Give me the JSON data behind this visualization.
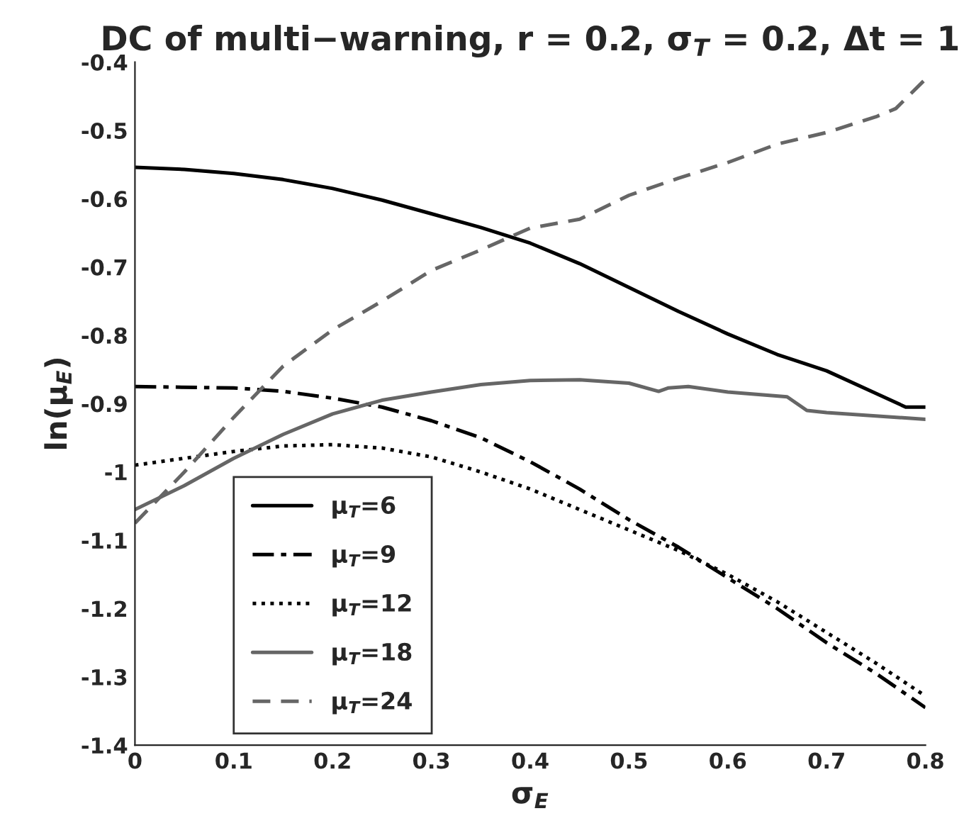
{
  "chart_data": {
    "type": "line",
    "title": "DC of multi−warning, r = 0.2, σ$_{T}$ = 0.2, Δt = 1",
    "xlabel": "σ$_{E}$",
    "ylabel": "ln(μ$_{E}$)",
    "xlim": [
      0,
      0.8
    ],
    "ylim": [
      -1.4,
      -0.4
    ],
    "xticks": [
      0,
      0.1,
      0.2,
      0.3,
      0.4,
      0.5,
      0.6,
      0.7,
      0.8
    ],
    "yticks": [
      -1.4,
      -1.3,
      -1.2,
      -1.1,
      -1,
      -0.9,
      -0.8,
      -0.7,
      -0.6,
      -0.5,
      -0.4
    ],
    "grid": false,
    "legend": "bottom left",
    "marker": "none",
    "series": [
      {
        "name": "μ$_{T}$=6",
        "color": "#000000",
        "line_style": "solid",
        "x": [
          0,
          0.05,
          0.1,
          0.15,
          0.2,
          0.25,
          0.3,
          0.35,
          0.4,
          0.45,
          0.5,
          0.55,
          0.6,
          0.65,
          0.7,
          0.75,
          0.78,
          0.8
        ],
        "values": [
          -0.554,
          -0.557,
          -0.563,
          -0.572,
          -0.585,
          -0.602,
          -0.622,
          -0.642,
          -0.665,
          -0.695,
          -0.73,
          -0.765,
          -0.798,
          -0.828,
          -0.852,
          -0.885,
          -0.905,
          -0.905
        ]
      },
      {
        "name": "μ$_{T}$=9",
        "color": "#000000",
        "line_style": "dashdot",
        "x": [
          0,
          0.1,
          0.15,
          0.2,
          0.25,
          0.3,
          0.35,
          0.4,
          0.45,
          0.5,
          0.55,
          0.6,
          0.65,
          0.7,
          0.75,
          0.8
        ],
        "values": [
          -0.875,
          -0.877,
          -0.882,
          -0.892,
          -0.905,
          -0.925,
          -0.95,
          -0.985,
          -1.025,
          -1.07,
          -1.11,
          -1.155,
          -1.2,
          -1.25,
          -1.295,
          -1.345
        ]
      },
      {
        "name": "μ$_{T}$=12",
        "color": "#000000",
        "line_style": "dotted",
        "x": [
          0,
          0.05,
          0.1,
          0.15,
          0.2,
          0.25,
          0.3,
          0.35,
          0.4,
          0.45,
          0.5,
          0.55,
          0.6,
          0.65,
          0.7,
          0.75,
          0.8
        ],
        "values": [
          -0.99,
          -0.98,
          -0.97,
          -0.962,
          -0.96,
          -0.965,
          -0.978,
          -1.0,
          -1.025,
          -1.055,
          -1.085,
          -1.115,
          -1.15,
          -1.19,
          -1.235,
          -1.28,
          -1.328
        ]
      },
      {
        "name": "μ$_{T}$=18",
        "color": "#666666",
        "line_style": "solid",
        "x": [
          0,
          0.05,
          0.1,
          0.15,
          0.2,
          0.25,
          0.3,
          0.35,
          0.4,
          0.45,
          0.5,
          0.53,
          0.54,
          0.56,
          0.6,
          0.66,
          0.68,
          0.7,
          0.8
        ],
        "values": [
          -1.055,
          -1.02,
          -0.98,
          -0.945,
          -0.915,
          -0.895,
          -0.883,
          -0.872,
          -0.866,
          -0.865,
          -0.87,
          -0.882,
          -0.877,
          -0.875,
          -0.883,
          -0.89,
          -0.91,
          -0.913,
          -0.923
        ]
      },
      {
        "name": "μ$_{T}$=24",
        "color": "#666666",
        "line_style": "dashed",
        "x": [
          0,
          0.05,
          0.1,
          0.15,
          0.2,
          0.25,
          0.3,
          0.35,
          0.4,
          0.45,
          0.5,
          0.55,
          0.6,
          0.65,
          0.7,
          0.75,
          0.77,
          0.8
        ],
        "values": [
          -1.075,
          -1.0,
          -0.92,
          -0.845,
          -0.792,
          -0.75,
          -0.705,
          -0.675,
          -0.643,
          -0.63,
          -0.595,
          -0.57,
          -0.547,
          -0.52,
          -0.503,
          -0.48,
          -0.468,
          -0.425
        ]
      }
    ]
  }
}
